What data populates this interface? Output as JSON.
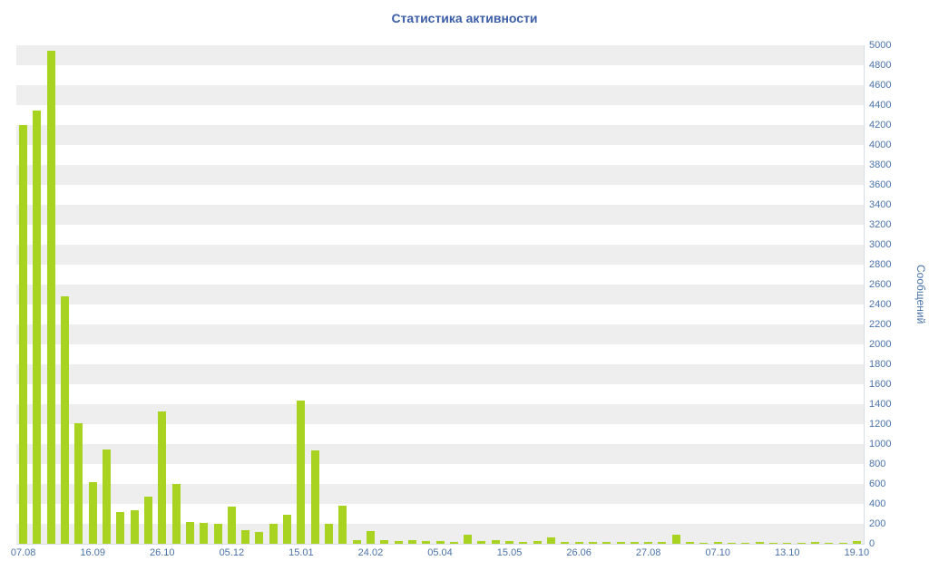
{
  "chart_data": {
    "type": "bar",
    "title": "Статистика активности",
    "ylabel": "Сообщений",
    "xlabel": "",
    "ylim": [
      0,
      5000
    ],
    "y_tick_step": 200,
    "grid": "horizontal-stripes",
    "legend": "none",
    "bar_color": "#a8d421",
    "label_color": "#4a72a8",
    "title_color": "#3b5ea6",
    "x_tick_labels": [
      "07.08",
      "16.09",
      "26.10",
      "05.12",
      "15.01",
      "24.02",
      "05.04",
      "15.05",
      "26.06",
      "27.08",
      "07.10",
      "13.10",
      "19.10"
    ],
    "x_tick_every": 5,
    "values": [
      4200,
      4350,
      4950,
      2480,
      1210,
      620,
      950,
      320,
      340,
      470,
      1330,
      600,
      220,
      210,
      200,
      370,
      140,
      120,
      200,
      290,
      1440,
      940,
      200,
      380,
      40,
      130,
      40,
      30,
      40,
      30,
      30,
      20,
      90,
      30,
      40,
      30,
      20,
      30,
      60,
      20,
      20,
      15,
      20,
      15,
      20,
      15,
      20,
      90,
      15,
      10,
      15,
      10,
      10,
      15,
      10,
      10,
      10,
      15,
      10,
      10,
      25
    ]
  }
}
